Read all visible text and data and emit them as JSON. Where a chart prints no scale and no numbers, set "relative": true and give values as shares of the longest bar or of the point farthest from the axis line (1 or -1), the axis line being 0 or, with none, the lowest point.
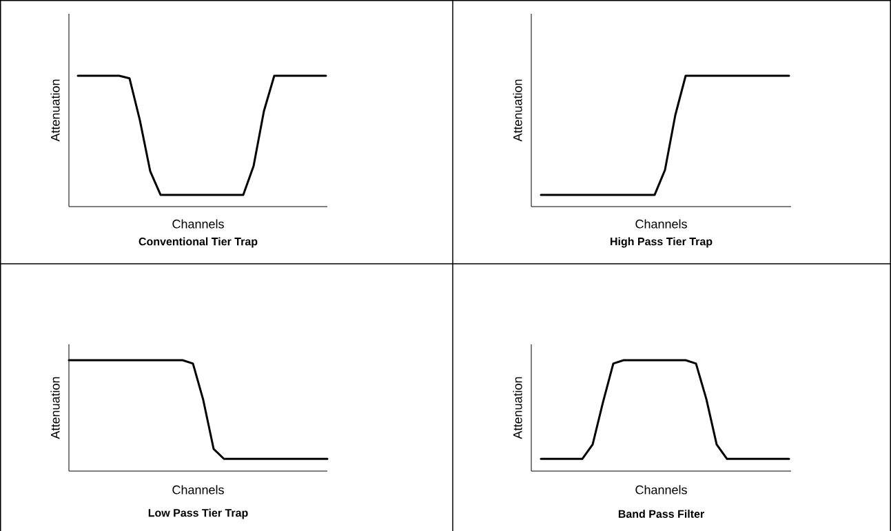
{
  "chart_data": [
    {
      "type": "line",
      "relative": true,
      "title": "Conventional Tier Trap",
      "xlabel": "Channels",
      "ylabel": "Attenuation",
      "color": "#000000",
      "categories": [
        null,
        null,
        null,
        null,
        null,
        null,
        null,
        null,
        null,
        null,
        null,
        null,
        null,
        null,
        null,
        null,
        null,
        null,
        null,
        null,
        null,
        null,
        null,
        null,
        null
      ],
      "values": [
        1,
        1,
        1,
        1,
        1,
        0.98,
        0.66,
        0.27,
        0.09,
        0.09,
        0.09,
        0.09,
        0.09,
        0.09,
        0.09,
        0.09,
        0.09,
        0.31,
        0.73,
        1,
        1,
        1,
        1,
        1,
        1
      ]
    },
    {
      "type": "line",
      "relative": true,
      "title": "High Pass Tier Trap",
      "xlabel": "Channels",
      "ylabel": "Attenuation",
      "color": "#000000",
      "categories": [
        null,
        null,
        null,
        null,
        null,
        null,
        null,
        null,
        null,
        null,
        null,
        null,
        null,
        null,
        null,
        null,
        null,
        null,
        null,
        null,
        null,
        null,
        null,
        null,
        null
      ],
      "values": [
        0.09,
        0.09,
        0.09,
        0.09,
        0.09,
        0.09,
        0.09,
        0.09,
        0.09,
        0.09,
        0.09,
        0.09,
        0.28,
        0.7,
        1,
        1,
        1,
        1,
        1,
        1,
        1,
        1,
        1,
        1,
        1
      ]
    },
    {
      "type": "line",
      "relative": true,
      "title": "Low Pass Tier Trap",
      "xlabel": "Channels",
      "ylabel": "Attenuation",
      "color": "#000000",
      "categories": [
        null,
        null,
        null,
        null,
        null,
        null,
        null,
        null,
        null,
        null,
        null,
        null,
        null,
        null,
        null,
        null,
        null,
        null,
        null,
        null,
        null,
        null,
        null,
        null,
        null,
        null
      ],
      "values": [
        1,
        1,
        1,
        1,
        1,
        1,
        1,
        1,
        1,
        1,
        1,
        1,
        0.97,
        0.64,
        0.2,
        0.11,
        0.11,
        0.11,
        0.11,
        0.11,
        0.11,
        0.11,
        0.11,
        0.11,
        0.11,
        0.11
      ]
    },
    {
      "type": "line",
      "relative": true,
      "title": "Band Pass Filter",
      "xlabel": "Channels",
      "ylabel": "Attenuation",
      "color": "#000000",
      "categories": [
        null,
        null,
        null,
        null,
        null,
        null,
        null,
        null,
        null,
        null,
        null,
        null,
        null,
        null,
        null,
        null,
        null,
        null,
        null,
        null,
        null,
        null,
        null,
        null,
        null
      ],
      "values": [
        0.11,
        0.11,
        0.11,
        0.11,
        0.11,
        0.24,
        0.62,
        0.97,
        1,
        1,
        1,
        1,
        1,
        1,
        1,
        0.97,
        0.65,
        0.24,
        0.11,
        0.11,
        0.11,
        0.11,
        0.11,
        0.11,
        0.11
      ]
    }
  ]
}
